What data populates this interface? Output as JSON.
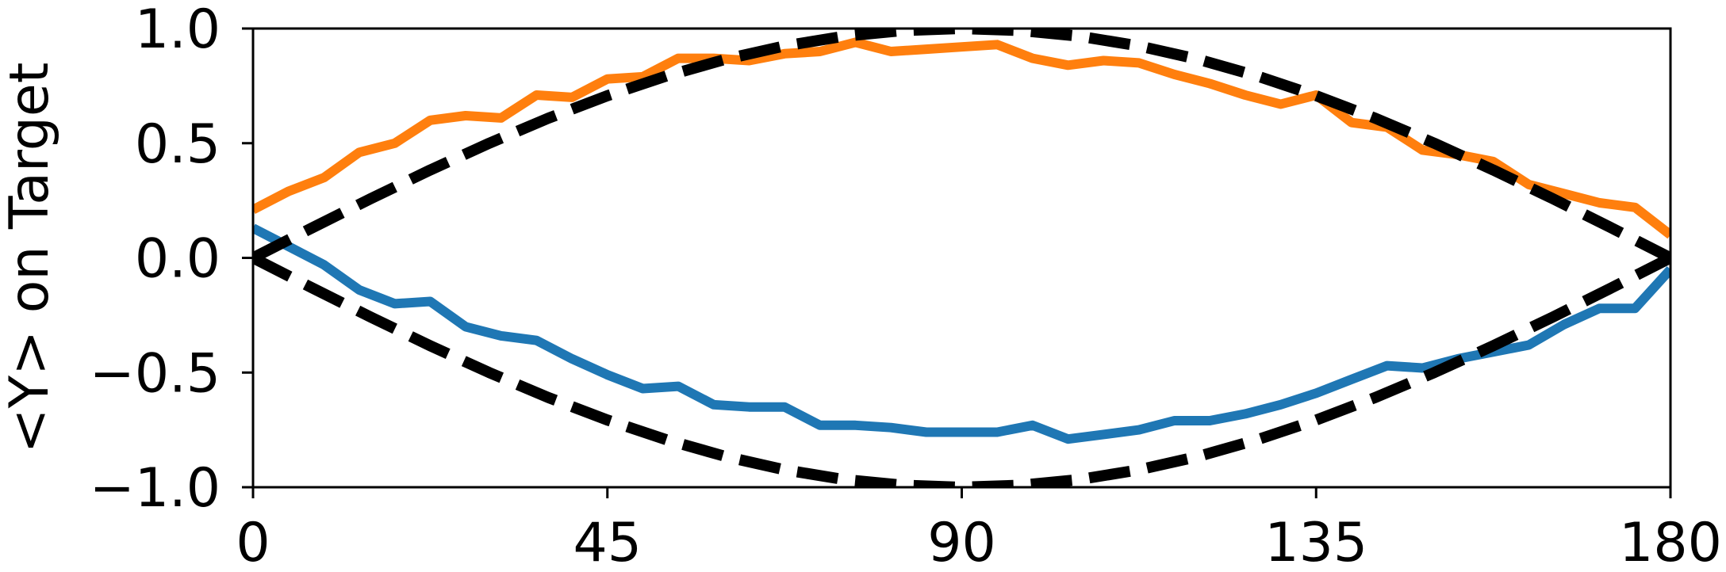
{
  "chart_data": {
    "type": "line",
    "title": "",
    "xlabel": "",
    "ylabel": "<Y> on Target",
    "xlim": [
      0,
      180
    ],
    "ylim": [
      -1.0,
      1.0
    ],
    "xticks": [
      0,
      45,
      90,
      135,
      180
    ],
    "xtick_labels": [
      "0",
      "45",
      "90",
      "135",
      "180"
    ],
    "yticks": [
      -1.0,
      -0.5,
      0.0,
      0.5,
      1.0
    ],
    "ytick_labels": [
      "−1.0",
      "−0.5",
      "0.0",
      "0.5",
      "1.0"
    ],
    "grid": false,
    "legend": "none",
    "series": [
      {
        "color": "#1f77b4",
        "style": "solid",
        "x": [
          0,
          4.5,
          9,
          13.5,
          18,
          22.5,
          27,
          31.5,
          36,
          40.5,
          45,
          49.5,
          54,
          58.5,
          63,
          67.5,
          72,
          76.5,
          81,
          85.5,
          90,
          94.5,
          99,
          103.5,
          108,
          112.5,
          117,
          121.5,
          126,
          130.5,
          135,
          139.5,
          144,
          148.5,
          153,
          157.5,
          162,
          166.5,
          171,
          175.5,
          180
        ],
        "y": [
          0.13,
          0.05,
          -0.03,
          -0.14,
          -0.2,
          -0.19,
          -0.3,
          -0.34,
          -0.36,
          -0.44,
          -0.51,
          -0.57,
          -0.56,
          -0.64,
          -0.65,
          -0.65,
          -0.73,
          -0.73,
          -0.74,
          -0.76,
          -0.76,
          -0.76,
          -0.73,
          -0.79,
          -0.77,
          -0.75,
          -0.71,
          -0.71,
          -0.68,
          -0.64,
          -0.59,
          -0.53,
          -0.47,
          -0.48,
          -0.44,
          -0.41,
          -0.38,
          -0.29,
          -0.22,
          -0.22,
          -0.05
        ]
      },
      {
        "color": "#ff7f0e",
        "style": "solid",
        "x": [
          0,
          4.5,
          9,
          13.5,
          18,
          22.5,
          27,
          31.5,
          36,
          40.5,
          45,
          49.5,
          54,
          58.5,
          63,
          67.5,
          72,
          76.5,
          81,
          85.5,
          90,
          94.5,
          99,
          103.5,
          108,
          112.5,
          117,
          121.5,
          126,
          130.5,
          135,
          139.5,
          144,
          148.5,
          153,
          157.5,
          162,
          166.5,
          171,
          175.5,
          180
        ],
        "y": [
          0.21,
          0.29,
          0.35,
          0.46,
          0.5,
          0.6,
          0.62,
          0.61,
          0.71,
          0.7,
          0.78,
          0.79,
          0.87,
          0.87,
          0.86,
          0.89,
          0.9,
          0.94,
          0.9,
          0.91,
          0.92,
          0.93,
          0.87,
          0.84,
          0.86,
          0.85,
          0.8,
          0.76,
          0.71,
          0.67,
          0.71,
          0.59,
          0.57,
          0.47,
          0.45,
          0.42,
          0.32,
          0.28,
          0.24,
          0.22,
          0.1
        ]
      },
      {
        "color": "#000000",
        "style": "dashed",
        "function": "sin(x)",
        "x": [
          0,
          7.5,
          15,
          22.5,
          30,
          37.5,
          45,
          52.5,
          60,
          67.5,
          75,
          82.5,
          90,
          97.5,
          105,
          112.5,
          120,
          127.5,
          135,
          142.5,
          150,
          157.5,
          165,
          172.5,
          180
        ],
        "y": [
          0.0,
          0.131,
          0.259,
          0.383,
          0.5,
          0.609,
          0.707,
          0.793,
          0.866,
          0.924,
          0.966,
          0.991,
          1.0,
          0.991,
          0.966,
          0.924,
          0.866,
          0.793,
          0.707,
          0.609,
          0.5,
          0.383,
          0.259,
          0.131,
          0.0
        ]
      },
      {
        "color": "#000000",
        "style": "dashed",
        "function": "-sin(x)",
        "x": [
          0,
          7.5,
          15,
          22.5,
          30,
          37.5,
          45,
          52.5,
          60,
          67.5,
          75,
          82.5,
          90,
          97.5,
          105,
          112.5,
          120,
          127.5,
          135,
          142.5,
          150,
          157.5,
          165,
          172.5,
          180
        ],
        "y": [
          0.0,
          -0.131,
          -0.259,
          -0.383,
          -0.5,
          -0.609,
          -0.707,
          -0.793,
          -0.866,
          -0.924,
          -0.966,
          -0.991,
          -1.0,
          -0.991,
          -0.966,
          -0.924,
          -0.866,
          -0.793,
          -0.707,
          -0.609,
          -0.5,
          -0.383,
          -0.259,
          -0.131,
          0.0
        ]
      }
    ]
  }
}
